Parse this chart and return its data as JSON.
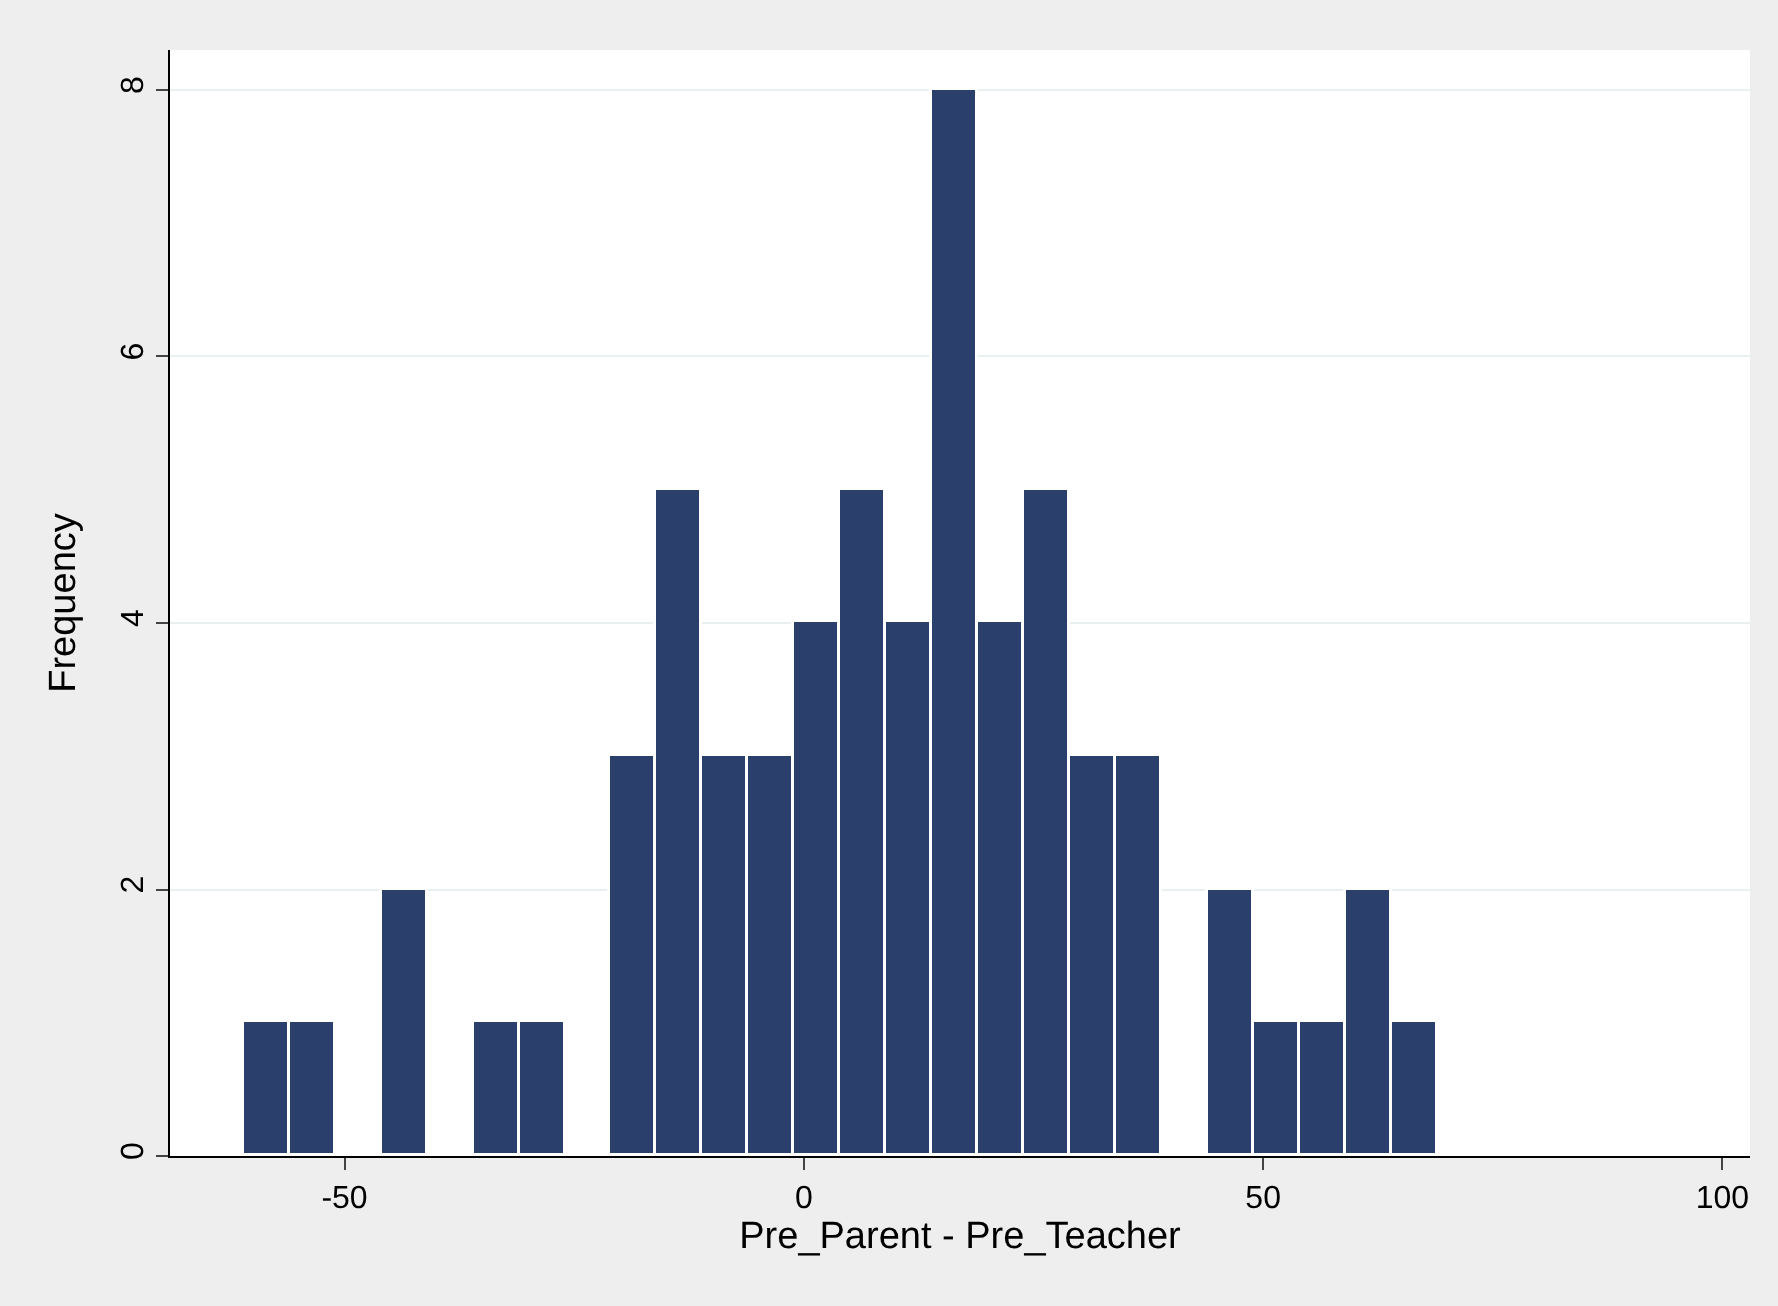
{
  "chart_data": {
    "type": "histogram",
    "xlabel": "Pre_Parent - Pre_Teacher",
    "ylabel": "Frequency",
    "bins": [
      -61,
      -56,
      -51,
      -46,
      -41,
      -36,
      -31,
      -26,
      -21,
      -16,
      -11,
      -6,
      -1,
      4,
      9,
      14,
      19,
      24,
      29,
      34,
      39,
      44,
      49,
      54,
      59,
      64,
      69
    ],
    "values": [
      1,
      1,
      0,
      2,
      0,
      1,
      1,
      0,
      3,
      5,
      3,
      3,
      4,
      5,
      4,
      8,
      4,
      5,
      3,
      3,
      0,
      2,
      1,
      1,
      2,
      1
    ],
    "color": "#2a3f6b",
    "xlim": [
      -69,
      103
    ],
    "xticks": [
      -50,
      0,
      50,
      100
    ],
    "ylim": [
      0,
      8.3
    ],
    "yticks": [
      0,
      2,
      4,
      6,
      8
    ],
    "grid": "y"
  }
}
